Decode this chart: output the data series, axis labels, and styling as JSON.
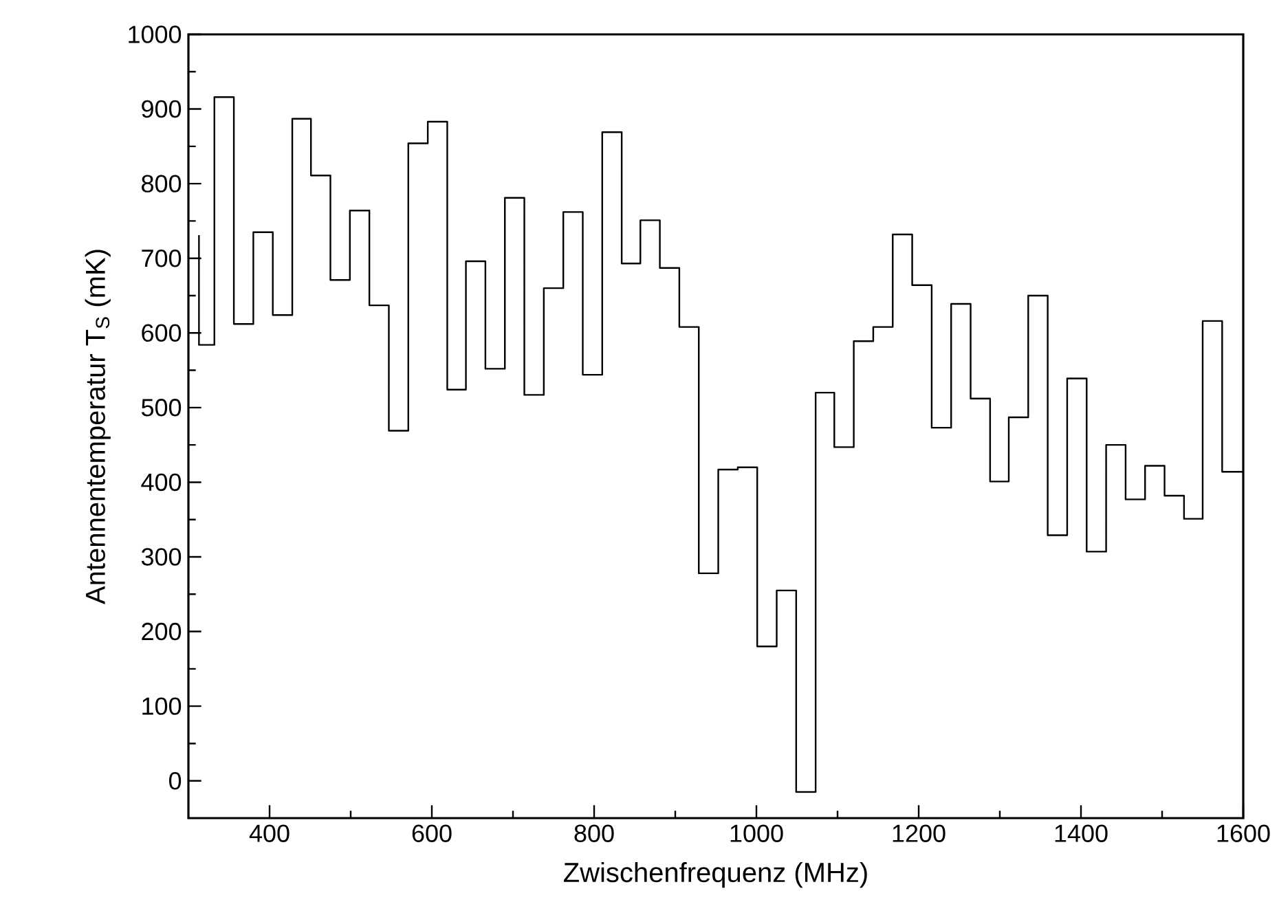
{
  "chart_data": {
    "type": "step",
    "xlabel": "Zwischenfrequenz (MHz)",
    "ylabel": "Antennentemperatur T$_{S}$ (mK)",
    "x": [
      313,
      332,
      356,
      380,
      404,
      428,
      451,
      475,
      499,
      523,
      547,
      571,
      595,
      619,
      642,
      666,
      690,
      714,
      738,
      762,
      786,
      810,
      834,
      857,
      881,
      905,
      929,
      953,
      977,
      1001,
      1025,
      1049,
      1073,
      1096,
      1120,
      1144,
      1168,
      1192,
      1216,
      1240,
      1264,
      1288,
      1311,
      1335,
      1359,
      1383,
      1407,
      1431,
      1455,
      1479,
      1503,
      1527,
      1550,
      1574,
      1600
    ],
    "values": [
      731,
      584,
      916,
      612,
      735,
      624,
      887,
      811,
      671,
      764,
      637,
      469,
      854,
      883,
      524,
      696,
      552,
      781,
      517,
      660,
      762,
      544,
      869,
      693,
      751,
      687,
      608,
      278,
      417,
      420,
      180,
      255,
      -15,
      520,
      447,
      589,
      608,
      732,
      664,
      473,
      639,
      512,
      401,
      487,
      650,
      329,
      539,
      307,
      450,
      377,
      422,
      382,
      351,
      616,
      414
    ],
    "color": "#000000",
    "line_style": "solid",
    "marker": "none",
    "grid": false,
    "xlim": [
      300,
      1600
    ],
    "ylim": [
      -50,
      1000
    ],
    "xticks": [
      400,
      600,
      800,
      1000,
      1200,
      1400,
      1600
    ],
    "yticks": [
      0,
      100,
      200,
      300,
      400,
      500,
      600,
      700,
      800,
      900,
      1000
    ]
  }
}
